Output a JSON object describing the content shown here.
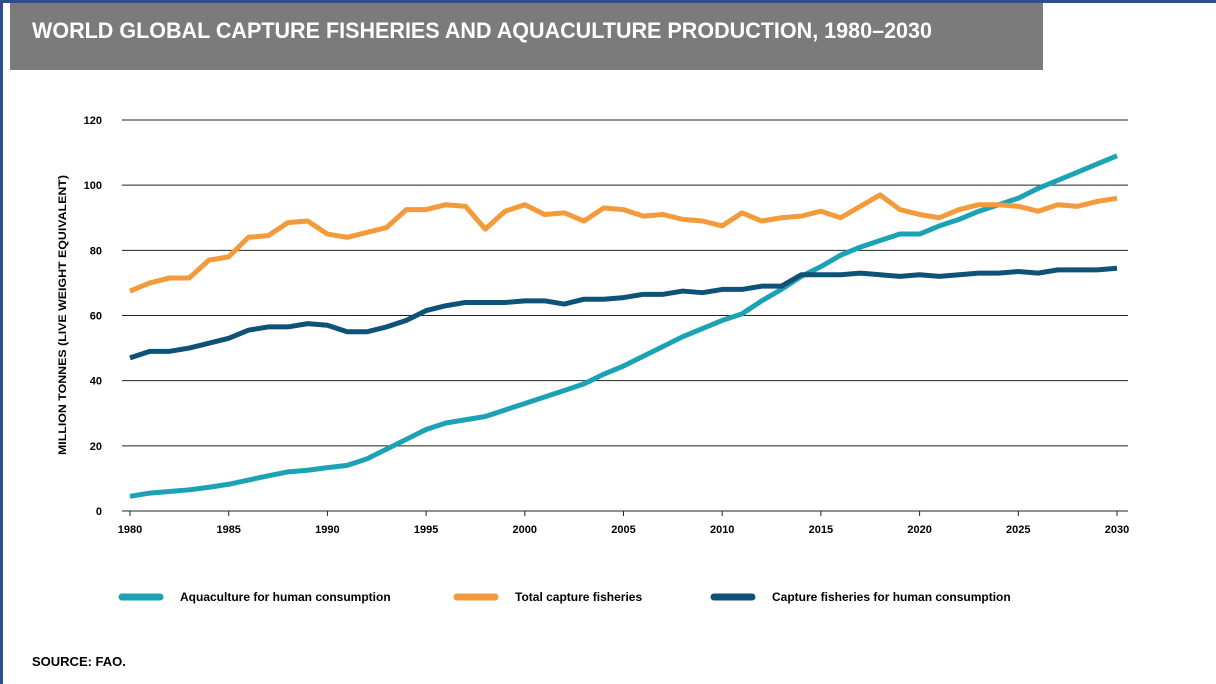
{
  "chart_data": {
    "type": "line",
    "title": "WORLD GLOBAL CAPTURE FISHERIES AND AQUACULTURE PRODUCTION, 1980–2030",
    "y_label": "MILLION TONNES (LIVE WEIGHT EQUIVALENT)",
    "source": "SOURCE: FAO.",
    "x": [
      1980,
      1981,
      1982,
      1983,
      1984,
      1985,
      1986,
      1987,
      1988,
      1989,
      1990,
      1991,
      1992,
      1993,
      1994,
      1995,
      1996,
      1997,
      1998,
      1999,
      2000,
      2001,
      2002,
      2003,
      2004,
      2005,
      2006,
      2007,
      2008,
      2009,
      2010,
      2011,
      2012,
      2013,
      2014,
      2015,
      2016,
      2017,
      2018,
      2019,
      2020,
      2021,
      2022,
      2023,
      2024,
      2025,
      2026,
      2027,
      2028,
      2029,
      2030
    ],
    "xlim": [
      1980,
      2030
    ],
    "xticks": [
      1980,
      1985,
      1990,
      1995,
      2000,
      2005,
      2010,
      2015,
      2020,
      2025,
      2030
    ],
    "ylim": [
      0,
      120
    ],
    "yticks": [
      0,
      20,
      40,
      60,
      80,
      100,
      120
    ],
    "grid": true,
    "legend": "bottom",
    "series": [
      {
        "name": "Aquaculture for human consumption",
        "color": "#1ba3b5",
        "values": [
          4.5,
          5.5,
          6,
          6.5,
          7.3,
          8.2,
          9.5,
          10.8,
          12,
          12.5,
          13.3,
          14,
          16,
          19,
          22,
          25,
          27,
          28,
          29,
          31,
          33,
          35,
          37,
          39,
          42,
          44.5,
          47.5,
          50.5,
          53.5,
          56,
          58.5,
          60.5,
          64.5,
          68,
          72,
          75,
          78.5,
          81,
          83,
          85,
          85,
          87.5,
          89.5,
          92,
          94,
          96,
          99,
          101.5,
          104,
          106.5,
          109
        ]
      },
      {
        "name": "Total capture fisheries",
        "color": "#f39a3b",
        "values": [
          67.5,
          70,
          71.5,
          71.5,
          77,
          78,
          84,
          84.5,
          88.5,
          89,
          85,
          84,
          85.5,
          87,
          92.5,
          92.5,
          94,
          93.5,
          86.5,
          92,
          94,
          91,
          91.5,
          89,
          93,
          92.5,
          90.5,
          91,
          89.5,
          89,
          87.5,
          91.5,
          89,
          90,
          90.5,
          92,
          90,
          93.5,
          97,
          92.5,
          91,
          90,
          92.5,
          94,
          94,
          93.5,
          92,
          94,
          93.5,
          95,
          96
        ]
      },
      {
        "name": "Capture fisheries for human consumption",
        "color": "#0e5278",
        "values": [
          47,
          49,
          49,
          50,
          51.5,
          53,
          55.5,
          56.5,
          56.5,
          57.5,
          57,
          55,
          55,
          56.5,
          58.5,
          61.5,
          63,
          64,
          64,
          64,
          64.5,
          64.5,
          63.5,
          65,
          65,
          65.5,
          66.5,
          66.5,
          67.5,
          67,
          68,
          68,
          69,
          69,
          72.5,
          72.5,
          72.5,
          73,
          72.5,
          72,
          72.5,
          72,
          72.5,
          73,
          73,
          73.5,
          73,
          74,
          74,
          74,
          74.5
        ]
      }
    ]
  }
}
